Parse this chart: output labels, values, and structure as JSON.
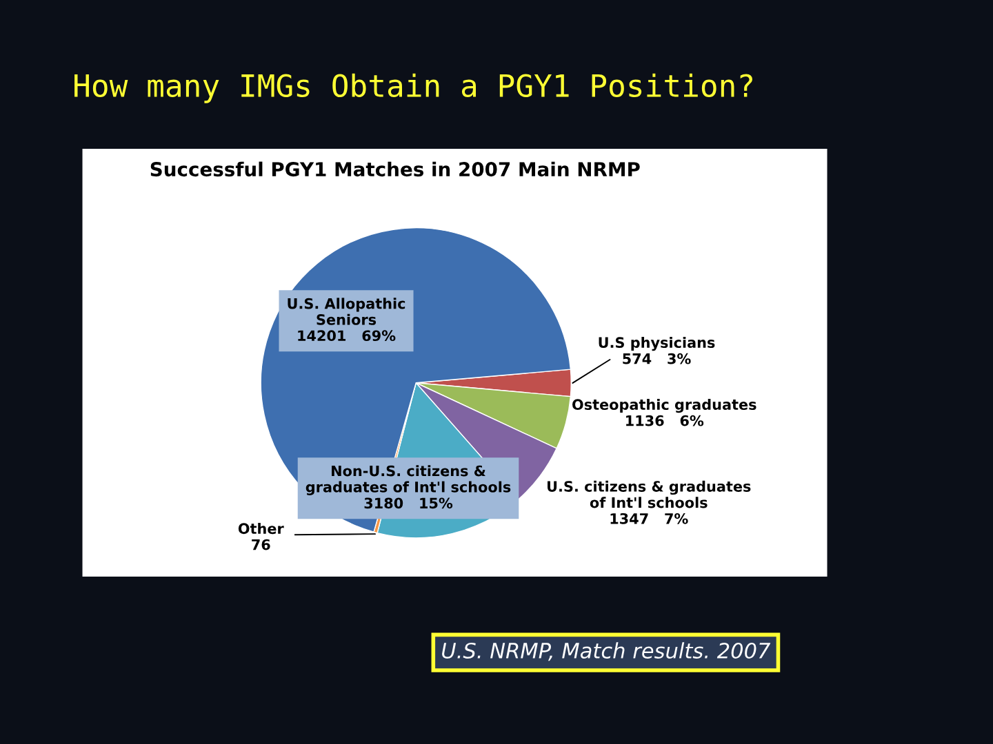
{
  "chart_data": {
    "type": "pie",
    "title": "How many IMGs Obtain a PGY1 Position?",
    "subtitle": "Successful PGY1 Matches in 2007 Main NRMP",
    "categories": [
      "U.S physicians",
      "Osteopathic graduates",
      "U.S. citizens & graduates of Int'l schools",
      "Non-U.S. citizens & graduates of Int'l schools",
      "Other",
      "U.S. Allopathic Seniors"
    ],
    "values": [
      574,
      1136,
      1347,
      3180,
      76,
      14201
    ],
    "value_labels": [
      "574   3%",
      "1136   6%",
      "1347   7%",
      "3180   15%",
      "76",
      "14201   69%"
    ],
    "colors": [
      "#c0504d",
      "#9bbb59",
      "#8064a2",
      "#4bacc6",
      "#f79646",
      "#3e6fb0"
    ],
    "annotations": [
      "U.S. NRMP, Match results. 2007"
    ]
  }
}
